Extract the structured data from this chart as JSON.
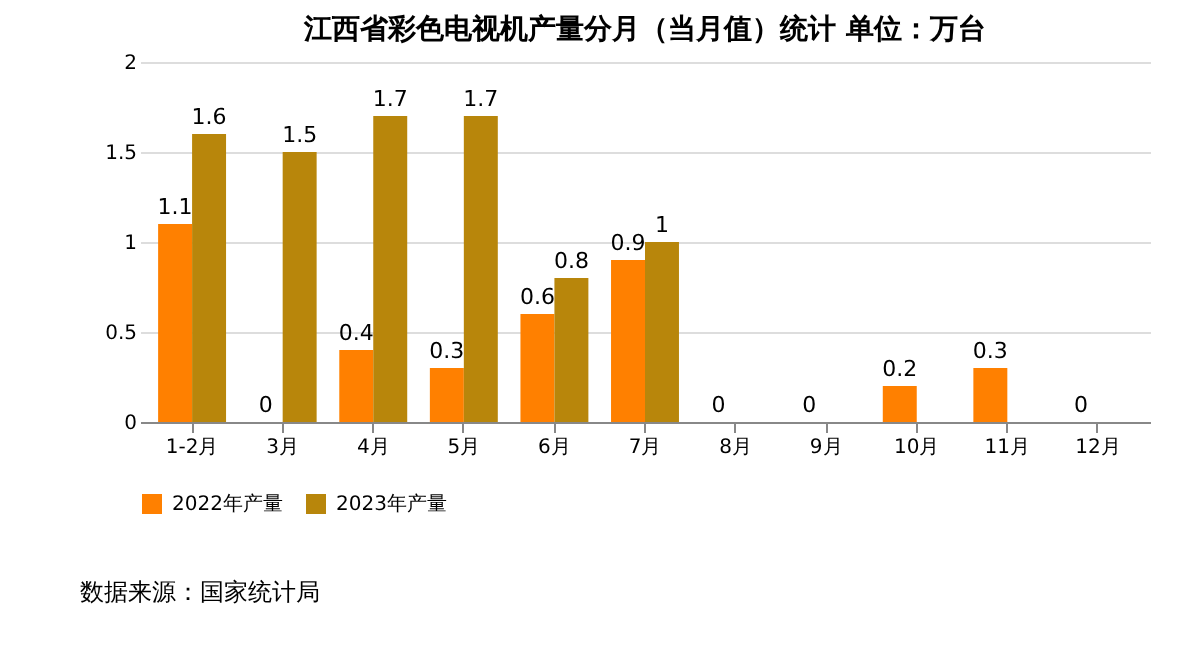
{
  "chart_data": {
    "type": "bar",
    "title": "江西省彩色电视机产量分月（当月值）统计  单位：万台",
    "categories": [
      "1-2月",
      "3月",
      "4月",
      "5月",
      "6月",
      "7月",
      "8月",
      "9月",
      "10月",
      "11月",
      "12月"
    ],
    "series": [
      {
        "name": "2022年产量",
        "color": "#ff8000",
        "values": [
          1.1,
          0,
          0.4,
          0.3,
          0.6,
          0.9,
          0,
          0,
          0.2,
          0.3,
          0
        ]
      },
      {
        "name": "2023年产量",
        "color": "#b8860b",
        "values": [
          1.6,
          1.5,
          1.7,
          1.7,
          0.8,
          1,
          null,
          null,
          null,
          null,
          null
        ]
      }
    ],
    "ylim": [
      0,
      2
    ],
    "yticks": [
      0,
      0.5,
      1,
      1.5,
      2
    ],
    "grid": "y",
    "legend": "bottom",
    "data_labels": true,
    "annotations": [
      "数据来源：国家统计局"
    ]
  }
}
